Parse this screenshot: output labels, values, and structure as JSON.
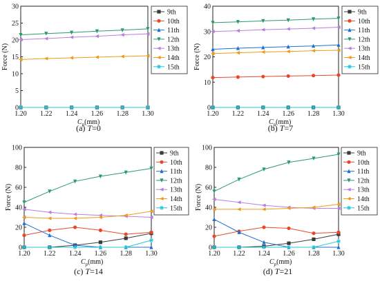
{
  "chart_data": [
    {
      "type": "line",
      "caption_prefix": "(a) ",
      "caption_var": "T",
      "caption_value": "=0",
      "ylabel": "Force (N)",
      "xlabel_main": "C",
      "xlabel_sub": "p",
      "xlabel_unit": "(mm)",
      "xlim": [
        1.2,
        1.3
      ],
      "ylim": [
        0,
        30
      ],
      "yticks": [
        0,
        5,
        10,
        15,
        20,
        25,
        30
      ],
      "x": [
        1.2,
        1.22,
        1.24,
        1.26,
        1.28,
        1.3
      ],
      "series": [
        {
          "name": "9th",
          "values": [
            0,
            0,
            0,
            0,
            0,
            0
          ]
        },
        {
          "name": "10th",
          "values": [
            0,
            0,
            0,
            0,
            0,
            0
          ]
        },
        {
          "name": "11th",
          "values": [
            0,
            0,
            0,
            0,
            0,
            0
          ]
        },
        {
          "name": "12th",
          "values": [
            21.5,
            21.9,
            22.2,
            22.6,
            22.9,
            23.3
          ]
        },
        {
          "name": "13th",
          "values": [
            20.1,
            20.4,
            20.8,
            21.1,
            21.5,
            21.8
          ]
        },
        {
          "name": "14th",
          "values": [
            14.2,
            14.5,
            14.7,
            14.9,
            15.1,
            15.3
          ]
        },
        {
          "name": "15th",
          "values": [
            0,
            0,
            0,
            0,
            0,
            0
          ]
        }
      ]
    },
    {
      "type": "line",
      "caption_prefix": "(b) ",
      "caption_var": "T",
      "caption_value": "=7",
      "ylabel": "Force (N)",
      "xlabel_main": "C",
      "xlabel_sub": "p",
      "xlabel_unit": "(mm)",
      "xlim": [
        1.2,
        1.3
      ],
      "ylim": [
        0,
        40
      ],
      "yticks": [
        0,
        10,
        20,
        30,
        40
      ],
      "x": [
        1.2,
        1.22,
        1.24,
        1.26,
        1.28,
        1.3
      ],
      "series": [
        {
          "name": "9th",
          "values": [
            0,
            0,
            0,
            0,
            0,
            0
          ]
        },
        {
          "name": "10th",
          "values": [
            11.8,
            12.0,
            12.2,
            12.4,
            12.6,
            12.8
          ]
        },
        {
          "name": "11th",
          "values": [
            23.0,
            23.4,
            23.7,
            24.0,
            24.3,
            24.7
          ]
        },
        {
          "name": "12th",
          "values": [
            33.5,
            33.8,
            34.2,
            34.5,
            34.9,
            35.2
          ]
        },
        {
          "name": "13th",
          "values": [
            30.0,
            30.3,
            30.7,
            31.0,
            31.3,
            31.7
          ]
        },
        {
          "name": "14th",
          "values": [
            21.3,
            21.6,
            21.9,
            22.1,
            22.4,
            22.6
          ]
        },
        {
          "name": "15th",
          "values": [
            0,
            0,
            0,
            0,
            0,
            0
          ]
        }
      ]
    },
    {
      "type": "line",
      "caption_prefix": "(c) ",
      "caption_var": "T",
      "caption_value": "=14",
      "ylabel": "Force (N)",
      "xlabel_main": "C",
      "xlabel_sub": "p",
      "xlabel_unit": "(mm)",
      "xlim": [
        1.2,
        1.3
      ],
      "ylim": [
        0,
        100
      ],
      "yticks": [
        0,
        20,
        40,
        60,
        80,
        100
      ],
      "x": [
        1.2,
        1.22,
        1.24,
        1.26,
        1.28,
        1.3
      ],
      "series": [
        {
          "name": "9th",
          "values": [
            0,
            0,
            2,
            5,
            9,
            14
          ]
        },
        {
          "name": "10th",
          "values": [
            12,
            17,
            20,
            17,
            13,
            15
          ]
        },
        {
          "name": "11th",
          "values": [
            24,
            12,
            2,
            0,
            0,
            0
          ]
        },
        {
          "name": "12th",
          "values": [
            45,
            56,
            66,
            71,
            75,
            79
          ]
        },
        {
          "name": "13th",
          "values": [
            38,
            35,
            33,
            32,
            31,
            30
          ]
        },
        {
          "name": "14th",
          "values": [
            30,
            29,
            29,
            30,
            32,
            36
          ]
        },
        {
          "name": "15th",
          "values": [
            0,
            0,
            0,
            0,
            0,
            7
          ]
        }
      ]
    },
    {
      "type": "line",
      "caption_prefix": "(d) ",
      "caption_var": "T",
      "caption_value": "=21",
      "ylabel": "Force (N)",
      "xlabel_main": "C",
      "xlabel_sub": "p",
      "xlabel_unit": "(mm)",
      "xlim": [
        1.2,
        1.3
      ],
      "ylim": [
        0,
        100
      ],
      "yticks": [
        0,
        20,
        40,
        60,
        80,
        100
      ],
      "x": [
        1.2,
        1.22,
        1.24,
        1.26,
        1.28,
        1.3
      ],
      "series": [
        {
          "name": "9th",
          "values": [
            0,
            0,
            1,
            4,
            8,
            13
          ]
        },
        {
          "name": "10th",
          "values": [
            11,
            16,
            20,
            19,
            14,
            15
          ]
        },
        {
          "name": "11th",
          "values": [
            28,
            15,
            5,
            0,
            0,
            0
          ]
        },
        {
          "name": "12th",
          "values": [
            56,
            68,
            78,
            85,
            89,
            93
          ]
        },
        {
          "name": "13th",
          "values": [
            48,
            45,
            42,
            40,
            39,
            39
          ]
        },
        {
          "name": "14th",
          "values": [
            38,
            38,
            38,
            39,
            40,
            43
          ]
        },
        {
          "name": "15th",
          "values": [
            0,
            0,
            0,
            0,
            0,
            6
          ]
        }
      ]
    }
  ],
  "series_colors": [
    "#3b3b3b",
    "#e8472b",
    "#1f6fd1",
    "#2a9a6e",
    "#b97ee0",
    "#f09a18",
    "#22c4d8"
  ],
  "series_markers": [
    "square",
    "circle",
    "triangle-up",
    "triangle-down",
    "triangle-left",
    "triangle-left",
    "star"
  ],
  "x_tick_values": [
    1.2,
    1.22,
    1.24,
    1.26,
    1.28,
    1.3
  ],
  "x_tick_labels": [
    "1.20",
    "1.22",
    "1.24",
    "1.26",
    "1.28",
    "1.30"
  ]
}
